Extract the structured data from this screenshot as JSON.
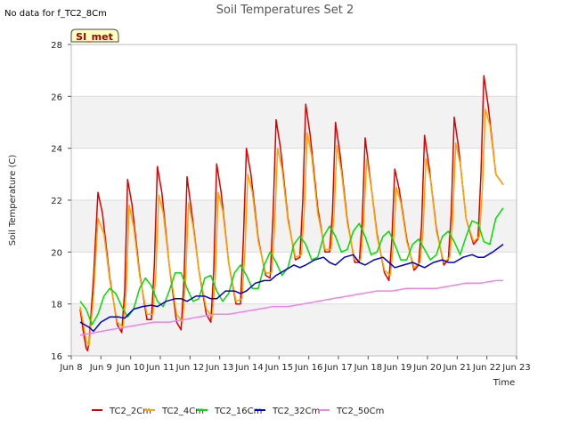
{
  "header": {
    "nodata_note": "No data for f_TC2_8Cm",
    "badge": "SI_met"
  },
  "chart_data": {
    "type": "line",
    "title": "Soil Temperatures Set 2",
    "xlabel": "Time",
    "ylabel": "Soil Temperature (C)",
    "xlim": [
      8,
      23
    ],
    "ylim": [
      16,
      28
    ],
    "x_ticks": [
      8,
      9,
      10,
      11,
      12,
      13,
      14,
      15,
      16,
      17,
      18,
      19,
      20,
      21,
      22,
      23
    ],
    "x_tick_labels": [
      "Jun 8",
      "Jun 9",
      "Jun 10",
      "Jun 11",
      "Jun 12",
      "Jun 13",
      "Jun 14",
      "Jun 15",
      "Jun 16",
      "Jun 17",
      "Jun 18",
      "Jun 19",
      "Jun 20",
      "Jun 21",
      "Jun 22",
      "Jun 23"
    ],
    "y_ticks": [
      16,
      18,
      20,
      22,
      24,
      26,
      28
    ],
    "y_tick_labels": [
      "16",
      "18",
      "20",
      "22",
      "24",
      "26",
      "28"
    ],
    "grid": true,
    "legend_position": "bottom",
    "colors": {
      "plot_band": "#f2f2f2",
      "grid": "#dcdcdc",
      "badge_fill": "#ffffc0"
    },
    "series": [
      {
        "name": "TC2_2Cm",
        "color": "#dd0000",
        "x": [
          8.3,
          8.4,
          8.5,
          8.55,
          8.6,
          8.75,
          8.9,
          9.05,
          9.3,
          9.55,
          9.7,
          9.8,
          9.9,
          10.05,
          10.3,
          10.55,
          10.7,
          10.8,
          10.9,
          11.05,
          11.3,
          11.55,
          11.7,
          11.8,
          11.9,
          12.05,
          12.3,
          12.55,
          12.7,
          12.8,
          12.9,
          13.05,
          13.3,
          13.55,
          13.7,
          13.8,
          13.9,
          14.05,
          14.3,
          14.55,
          14.7,
          14.8,
          14.9,
          15.05,
          15.3,
          15.55,
          15.7,
          15.8,
          15.9,
          16.05,
          16.3,
          16.55,
          16.7,
          16.8,
          16.9,
          17.05,
          17.3,
          17.55,
          17.7,
          17.8,
          17.9,
          18.05,
          18.3,
          18.55,
          18.7,
          18.8,
          18.9,
          19.05,
          19.3,
          19.55,
          19.7,
          19.8,
          19.9,
          20.05,
          20.3,
          20.55,
          20.7,
          20.8,
          20.9,
          21.05,
          21.3,
          21.55,
          21.7,
          21.8,
          21.9,
          22.05,
          22.3,
          22.55
        ],
        "y": [
          17.8,
          17.0,
          16.3,
          16.2,
          16.5,
          19.0,
          22.3,
          21.5,
          19.0,
          17.2,
          16.9,
          18.5,
          22.8,
          21.8,
          19.2,
          17.4,
          17.4,
          19.5,
          23.3,
          22.3,
          19.5,
          17.3,
          17.0,
          19.0,
          22.9,
          21.6,
          19.3,
          17.6,
          17.3,
          19.3,
          23.4,
          22.3,
          19.6,
          18.0,
          18.0,
          20.5,
          24.0,
          23.0,
          20.5,
          19.1,
          19.0,
          21.5,
          25.1,
          24.0,
          21.3,
          19.7,
          19.8,
          22.0,
          25.7,
          24.5,
          21.7,
          20.0,
          20.0,
          21.5,
          25.0,
          23.8,
          21.2,
          19.6,
          19.6,
          21.2,
          24.4,
          23.0,
          20.7,
          19.2,
          18.9,
          20.5,
          23.2,
          22.4,
          20.5,
          19.3,
          19.5,
          21.0,
          24.5,
          23.3,
          20.9,
          19.5,
          19.7,
          21.5,
          25.2,
          24.0,
          21.3,
          20.3,
          20.5,
          23.0,
          26.8,
          25.6,
          23.0,
          22.6
        ]
      },
      {
        "name": "TC2_4Cm",
        "color": "#ffa500",
        "x": [
          8.3,
          8.4,
          8.5,
          8.6,
          8.75,
          8.9,
          9.1,
          9.3,
          9.55,
          9.75,
          9.85,
          9.95,
          10.1,
          10.3,
          10.55,
          10.75,
          10.85,
          10.95,
          11.1,
          11.3,
          11.55,
          11.75,
          11.85,
          11.95,
          12.1,
          12.3,
          12.55,
          12.75,
          12.85,
          12.95,
          13.1,
          13.3,
          13.55,
          13.75,
          13.85,
          13.95,
          14.1,
          14.3,
          14.55,
          14.75,
          14.85,
          14.95,
          15.1,
          15.3,
          15.55,
          15.75,
          15.85,
          15.95,
          16.1,
          16.3,
          16.55,
          16.75,
          16.85,
          16.95,
          17.1,
          17.3,
          17.55,
          17.75,
          17.85,
          17.95,
          18.1,
          18.3,
          18.55,
          18.75,
          18.85,
          18.95,
          19.1,
          19.3,
          19.55,
          19.75,
          19.85,
          19.95,
          20.1,
          20.3,
          20.55,
          20.75,
          20.85,
          20.95,
          21.1,
          21.3,
          21.55,
          21.75,
          21.85,
          21.95,
          22.1,
          22.3,
          22.55
        ],
        "y": [
          17.9,
          17.3,
          16.6,
          16.4,
          18.3,
          21.3,
          20.7,
          18.9,
          17.3,
          17.1,
          18.5,
          21.8,
          21.0,
          19.1,
          17.6,
          17.6,
          19.2,
          22.2,
          21.5,
          19.5,
          17.6,
          17.3,
          18.9,
          21.9,
          21.0,
          19.3,
          17.8,
          17.5,
          19.0,
          22.3,
          21.6,
          19.6,
          18.1,
          18.2,
          20.0,
          23.0,
          22.3,
          20.4,
          19.2,
          19.2,
          20.9,
          24.0,
          23.2,
          21.2,
          19.8,
          19.9,
          21.6,
          24.6,
          23.7,
          21.5,
          20.1,
          20.1,
          21.4,
          24.1,
          23.1,
          21.1,
          19.7,
          19.7,
          21.1,
          23.6,
          22.5,
          20.6,
          19.3,
          19.1,
          20.3,
          22.5,
          21.9,
          20.4,
          19.4,
          19.6,
          20.8,
          23.6,
          22.8,
          20.8,
          19.6,
          19.8,
          21.2,
          24.2,
          23.4,
          21.3,
          20.4,
          20.6,
          22.5,
          25.5,
          24.9,
          23.0,
          22.6
        ]
      },
      {
        "name": "TC2_16Cm",
        "color": "#00dd00",
        "x": [
          8.3,
          8.5,
          8.7,
          8.9,
          9.1,
          9.3,
          9.5,
          9.7,
          9.9,
          10.1,
          10.3,
          10.5,
          10.7,
          10.9,
          11.1,
          11.3,
          11.5,
          11.7,
          11.9,
          12.1,
          12.3,
          12.5,
          12.7,
          12.9,
          13.1,
          13.3,
          13.5,
          13.7,
          13.9,
          14.1,
          14.3,
          14.5,
          14.7,
          14.9,
          15.1,
          15.3,
          15.5,
          15.7,
          15.9,
          16.1,
          16.3,
          16.5,
          16.7,
          16.9,
          17.1,
          17.3,
          17.5,
          17.7,
          17.9,
          18.1,
          18.3,
          18.5,
          18.7,
          18.9,
          19.1,
          19.3,
          19.5,
          19.7,
          19.9,
          20.1,
          20.3,
          20.5,
          20.7,
          20.9,
          21.1,
          21.3,
          21.5,
          21.7,
          21.9,
          22.1,
          22.3,
          22.55
        ],
        "y": [
          18.1,
          17.8,
          17.2,
          17.6,
          18.3,
          18.6,
          18.4,
          17.9,
          17.5,
          17.8,
          18.6,
          19.0,
          18.7,
          18.1,
          17.9,
          18.5,
          19.2,
          19.2,
          18.6,
          18.1,
          18.2,
          19.0,
          19.1,
          18.5,
          18.1,
          18.4,
          19.2,
          19.5,
          19.1,
          18.6,
          18.6,
          19.5,
          20.0,
          19.6,
          19.1,
          19.4,
          20.3,
          20.6,
          20.3,
          19.7,
          19.8,
          20.6,
          21.0,
          20.6,
          20.0,
          20.1,
          20.8,
          21.1,
          20.6,
          19.9,
          20.0,
          20.6,
          20.8,
          20.3,
          19.7,
          19.7,
          20.3,
          20.5,
          20.1,
          19.7,
          19.9,
          20.6,
          20.8,
          20.4,
          19.9,
          20.6,
          21.2,
          21.1,
          20.4,
          20.3,
          21.3,
          21.7
        ]
      },
      {
        "name": "TC2_32Cm",
        "color": "#0000cc",
        "x": [
          8.3,
          8.6,
          8.75,
          9.0,
          9.3,
          9.6,
          9.8,
          10.1,
          10.4,
          10.7,
          10.9,
          11.2,
          11.5,
          11.7,
          11.9,
          12.2,
          12.5,
          12.7,
          12.9,
          13.2,
          13.5,
          13.7,
          13.9,
          14.2,
          14.5,
          14.7,
          14.9,
          15.2,
          15.5,
          15.7,
          15.9,
          16.2,
          16.5,
          16.7,
          16.9,
          17.2,
          17.5,
          17.7,
          17.9,
          18.2,
          18.5,
          18.7,
          18.9,
          19.2,
          19.5,
          19.7,
          19.9,
          20.2,
          20.5,
          20.7,
          20.9,
          21.2,
          21.5,
          21.7,
          21.9,
          22.2,
          22.55
        ],
        "y": [
          17.3,
          17.1,
          16.95,
          17.3,
          17.5,
          17.5,
          17.45,
          17.8,
          17.9,
          17.95,
          17.9,
          18.1,
          18.2,
          18.2,
          18.1,
          18.3,
          18.3,
          18.2,
          18.2,
          18.5,
          18.5,
          18.4,
          18.5,
          18.8,
          18.9,
          18.9,
          19.1,
          19.3,
          19.5,
          19.4,
          19.5,
          19.7,
          19.8,
          19.6,
          19.5,
          19.8,
          19.9,
          19.6,
          19.5,
          19.7,
          19.8,
          19.6,
          19.4,
          19.5,
          19.6,
          19.5,
          19.4,
          19.6,
          19.7,
          19.6,
          19.6,
          19.8,
          19.9,
          19.8,
          19.8,
          20.0,
          20.3
        ]
      },
      {
        "name": "TC2_50Cm",
        "color": "#ee82ee",
        "x": [
          8.3,
          8.8,
          9.3,
          9.8,
          10.3,
          10.8,
          11.3,
          11.8,
          12.3,
          12.8,
          13.3,
          13.8,
          14.3,
          14.8,
          15.3,
          15.8,
          16.3,
          16.8,
          17.3,
          17.8,
          18.3,
          18.8,
          19.3,
          19.8,
          20.3,
          20.8,
          21.3,
          21.8,
          22.3,
          22.55
        ],
        "y": [
          16.8,
          16.9,
          17.0,
          17.1,
          17.2,
          17.3,
          17.3,
          17.4,
          17.5,
          17.6,
          17.6,
          17.7,
          17.8,
          17.9,
          17.9,
          18.0,
          18.1,
          18.2,
          18.3,
          18.4,
          18.5,
          18.5,
          18.6,
          18.6,
          18.6,
          18.7,
          18.8,
          18.8,
          18.9,
          18.9
        ]
      }
    ]
  }
}
